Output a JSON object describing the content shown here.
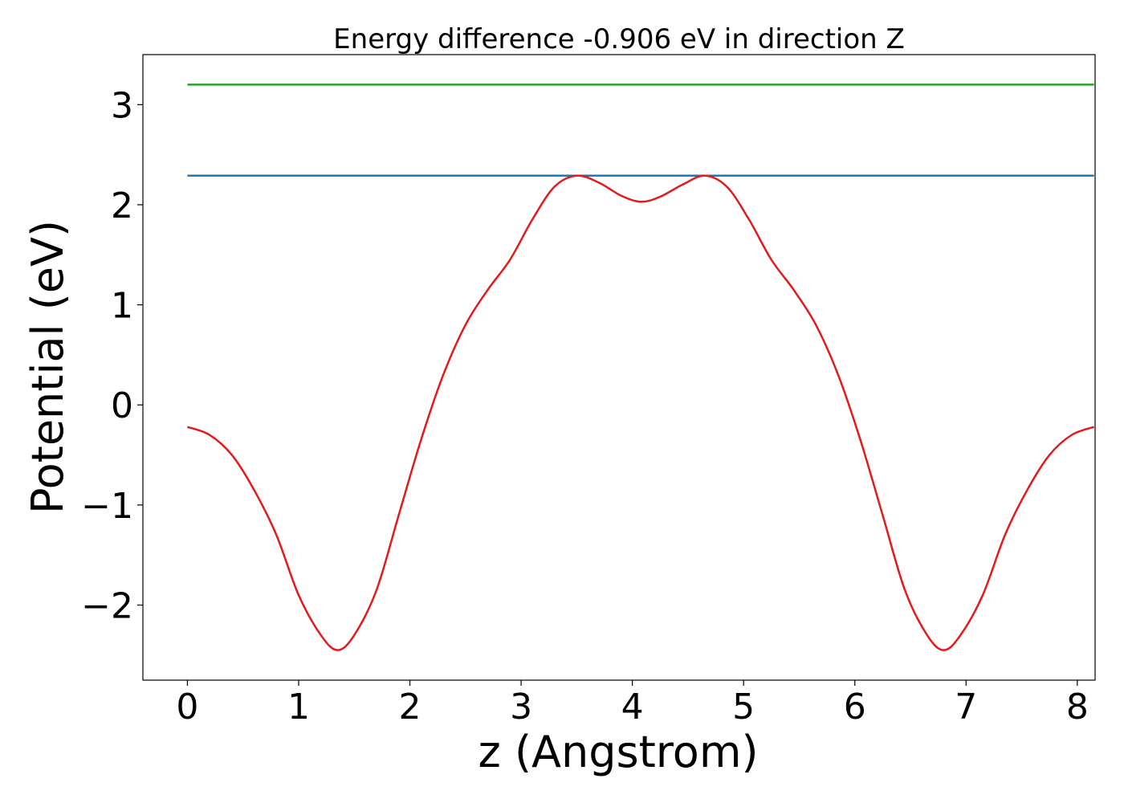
{
  "chart_data": {
    "type": "line",
    "title": "Energy difference -0.906 eV in direction Z",
    "xlabel": "z (Angstrom)",
    "ylabel": "Potential (eV)",
    "xlim": [
      -0.4,
      8.16
    ],
    "ylim": [
      -2.75,
      3.5
    ],
    "xticks": [
      0,
      1,
      2,
      3,
      4,
      5,
      6,
      7,
      8
    ],
    "yticks": [
      -2,
      -1,
      0,
      1,
      2,
      3
    ],
    "xtick_labels": [
      "0",
      "1",
      "2",
      "3",
      "4",
      "5",
      "6",
      "7",
      "8"
    ],
    "ytick_labels": [
      "−2",
      "−1",
      "0",
      "1",
      "2",
      "3"
    ],
    "grid": false,
    "series": [
      {
        "color": "#2ca02c",
        "x": [
          0,
          8.15
        ],
        "y": [
          3.2,
          3.2
        ]
      },
      {
        "color": "#1f77b4",
        "x": [
          0,
          8.15
        ],
        "y": [
          2.29,
          2.29
        ]
      },
      {
        "color": "#e31a1c",
        "x": [
          0,
          0.2,
          0.4,
          0.6,
          0.8,
          1.0,
          1.2,
          1.35,
          1.5,
          1.7,
          1.9,
          2.1,
          2.3,
          2.5,
          2.7,
          2.9,
          3.1,
          3.3,
          3.5,
          3.7,
          3.9,
          4.08,
          4.25,
          4.45,
          4.65,
          4.85,
          5.05,
          5.25,
          5.45,
          5.65,
          5.85,
          6.05,
          6.25,
          6.45,
          6.65,
          6.8,
          6.95,
          7.15,
          7.35,
          7.55,
          7.75,
          7.95,
          8.15
        ],
        "y": [
          -0.22,
          -0.3,
          -0.5,
          -0.85,
          -1.3,
          -1.9,
          -2.3,
          -2.45,
          -2.3,
          -1.85,
          -1.1,
          -0.35,
          0.3,
          0.8,
          1.15,
          1.45,
          1.85,
          2.18,
          2.29,
          2.22,
          2.09,
          2.03,
          2.08,
          2.2,
          2.29,
          2.18,
          1.85,
          1.45,
          1.15,
          0.8,
          0.3,
          -0.35,
          -1.1,
          -1.85,
          -2.3,
          -2.45,
          -2.3,
          -1.9,
          -1.3,
          -0.85,
          -0.5,
          -0.3,
          -0.22
        ]
      }
    ]
  }
}
